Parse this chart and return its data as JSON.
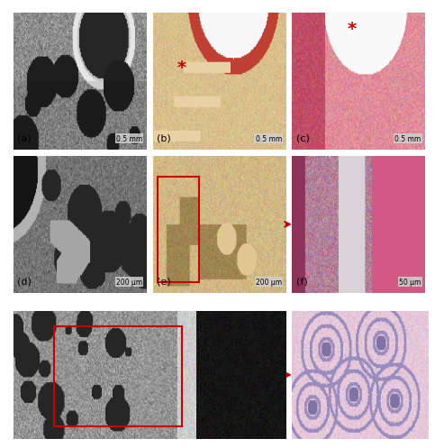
{
  "figure_bg": "#ffffff",
  "panel_layout": {
    "rows": 3,
    "cols": 3,
    "panels": [
      {
        "id": "a",
        "row": 0,
        "col": 0,
        "label": "(a)",
        "scale": "0.5 mm",
        "type": "ct_gray"
      },
      {
        "id": "b",
        "row": 0,
        "col": 1,
        "label": "(b)",
        "scale": "0.5 mm",
        "type": "histo_tan",
        "star": true
      },
      {
        "id": "c",
        "row": 0,
        "col": 2,
        "label": "(c)",
        "scale": "0.5 mm",
        "type": "histo_pink",
        "star": true
      },
      {
        "id": "d",
        "row": 1,
        "col": 0,
        "label": "(d)",
        "scale": "200 μm",
        "type": "ct_gray2"
      },
      {
        "id": "e",
        "row": 1,
        "col": 1,
        "label": "(e)",
        "scale": "200 μm",
        "type": "histo_tan2",
        "box": true,
        "arrow_to": "f"
      },
      {
        "id": "f",
        "row": 1,
        "col": 2,
        "label": "(f)",
        "scale": "50 μm",
        "type": "histo_pink2"
      },
      {
        "id": "g",
        "row": 2,
        "col": 0,
        "colspan": 2,
        "label": "",
        "scale": "",
        "type": "ct_wide",
        "box": true,
        "arrow_to": "h"
      },
      {
        "id": "h",
        "row": 2,
        "col": 2,
        "label": "",
        "scale": "",
        "type": "histo_lavender"
      }
    ]
  },
  "arrow_color": "#cc0000",
  "box_color": "#cc0000",
  "star_color": "#cc0000",
  "label_color": "#000000",
  "scale_bar_color": "#000000",
  "scale_bar_bg": "#d0d0d0",
  "font_size": 7,
  "label_font_size": 8
}
